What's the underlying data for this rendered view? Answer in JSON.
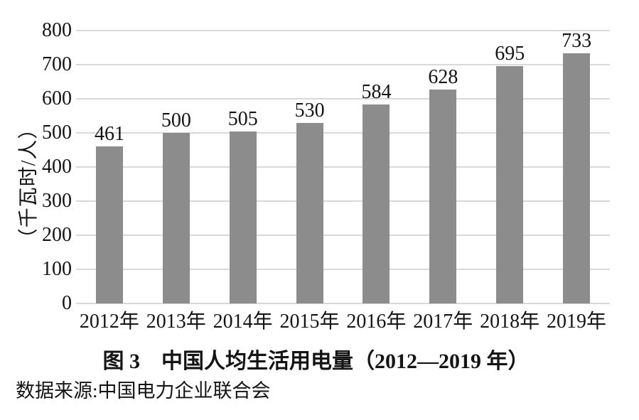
{
  "figure": {
    "caption": "图 3　中国人均生活用电量（2012—2019 年）",
    "source": "数据来源:中国电力企业联合会"
  },
  "chart_data": {
    "type": "bar",
    "categories": [
      "2012年",
      "2013年",
      "2014年",
      "2015年",
      "2016年",
      "2017年",
      "2018年",
      "2019年"
    ],
    "values": [
      461,
      500,
      505,
      530,
      584,
      628,
      695,
      733
    ],
    "title": "图 3　中国人均生活用电量（2012—2019 年）",
    "xlabel": "",
    "ylabel": "（千瓦时/人）",
    "ylim": [
      0,
      800
    ],
    "yticks": [
      0,
      100,
      200,
      300,
      400,
      500,
      600,
      700,
      800
    ],
    "grid": true,
    "legend": "none",
    "bar_labels_shown": true,
    "colors": {
      "bar": "#8c8c8c",
      "grid": "#d9d9d9",
      "text": "#141414",
      "background": "#ffffff"
    }
  }
}
